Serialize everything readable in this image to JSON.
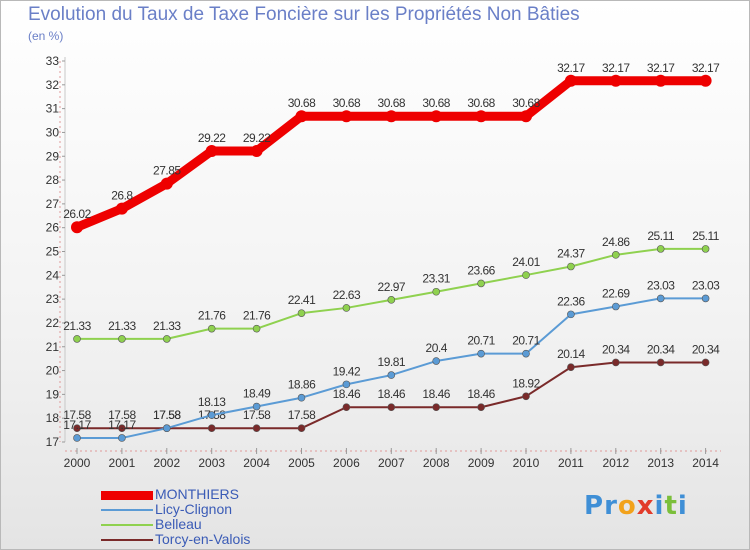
{
  "title": "Evolution du Taux de Taxe Foncière sur les Propriétés Non Bâties",
  "unit_label": "(en %)",
  "logo": {
    "text": "Proxiti",
    "letters": [
      "P",
      "r",
      "o",
      "x",
      "i",
      "t",
      "i"
    ],
    "colors": [
      "#3f8fd6",
      "#3f8fd6",
      "#f2a21b",
      "#e23b2a",
      "#3f8fd6",
      "#7bbf3a",
      "#3f8fd6"
    ]
  },
  "chart_data": {
    "type": "line",
    "categories": [
      "2000",
      "2001",
      "2002",
      "2003",
      "2004",
      "2005",
      "2006",
      "2007",
      "2008",
      "2009",
      "2010",
      "2011",
      "2012",
      "2013",
      "2014"
    ],
    "ylim": [
      17,
      33
    ],
    "yticks": [
      17,
      18,
      19,
      20,
      21,
      22,
      23,
      24,
      25,
      26,
      27,
      28,
      29,
      30,
      31,
      32,
      33
    ],
    "grid": false,
    "legend_position": "bottom-left",
    "series": [
      {
        "name": "MONTHIERS",
        "color": "#ee0000",
        "values": [
          26.02,
          26.8,
          27.85,
          29.22,
          29.22,
          30.68,
          30.68,
          30.68,
          30.68,
          30.68,
          30.68,
          32.17,
          32.17,
          32.17,
          32.17
        ],
        "labels": [
          "26.02",
          "26.8",
          "27.85",
          "29.22",
          "29.22",
          "30.68",
          "30.68",
          "30.68",
          "30.68",
          "30.68",
          "30.68",
          "32.17",
          "32.17",
          "32.17",
          "32.17"
        ]
      },
      {
        "name": "Licy-Clignon",
        "color": "#5b9bd5",
        "values": [
          17.17,
          17.17,
          17.58,
          18.13,
          18.49,
          18.86,
          19.42,
          19.81,
          20.4,
          20.71,
          20.71,
          22.36,
          22.69,
          23.03,
          23.03
        ],
        "labels": [
          "17.17",
          "17.17",
          "17.58",
          "18.13",
          "18.49",
          "18.86",
          "19.42",
          "19.81",
          "20.4",
          "20.71",
          "20.71",
          "22.36",
          "22.69",
          "23.03",
          "23.03"
        ]
      },
      {
        "name": "Belleau",
        "color": "#8fd14f",
        "values": [
          21.33,
          21.33,
          21.33,
          21.76,
          21.76,
          22.41,
          22.63,
          22.97,
          23.31,
          23.66,
          24.01,
          24.37,
          24.86,
          25.11,
          25.11
        ],
        "labels": [
          "21.33",
          "21.33",
          "21.33",
          "21.76",
          "21.76",
          "22.41",
          "22.63",
          "22.97",
          "23.31",
          "23.66",
          "24.01",
          "24.37",
          "24.86",
          "25.11",
          "25.11"
        ]
      },
      {
        "name": "Torcy-en-Valois",
        "color": "#7a2a2a",
        "values": [
          17.58,
          17.58,
          17.58,
          17.58,
          17.58,
          17.58,
          18.46,
          18.46,
          18.46,
          18.46,
          18.92,
          20.14,
          20.34,
          20.34,
          20.34
        ],
        "labels": [
          "17.58",
          "17.58",
          "17.58",
          "17.58",
          "17.58",
          "17.58",
          "18.46",
          "18.46",
          "18.46",
          "18.46",
          "18.92",
          "20.14",
          "20.34",
          "20.34",
          "20.34"
        ]
      }
    ]
  }
}
